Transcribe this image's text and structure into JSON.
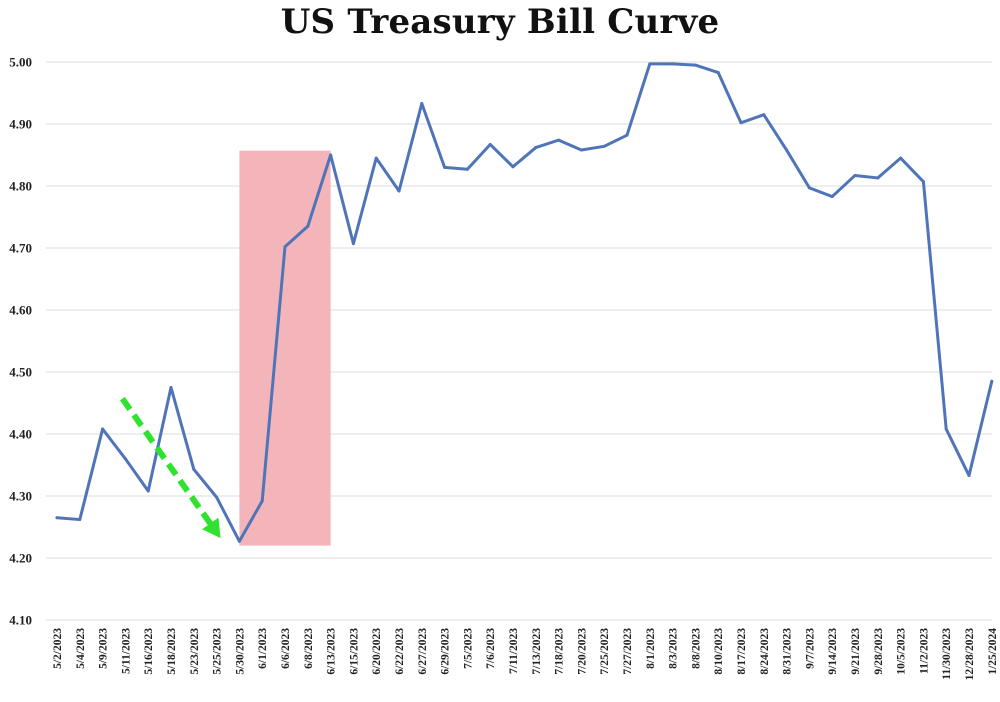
{
  "chart_data": {
    "type": "line",
    "title": "US Treasury Bill Curve",
    "xlabel": "",
    "ylabel": "",
    "ylim": [
      4.1,
      5.0
    ],
    "yticks": [
      "4.10",
      "4.20",
      "4.30",
      "4.40",
      "4.50",
      "4.60",
      "4.70",
      "4.80",
      "4.90",
      "5.00"
    ],
    "grid": true,
    "legend": "none",
    "categories": [
      "5/2/2023",
      "5/4/2023",
      "5/9/2023",
      "5/11/2023",
      "5/16/2023",
      "5/18/2023",
      "5/23/2023",
      "5/25/2023",
      "5/30/2023",
      "6/1/2023",
      "6/6/2023",
      "6/8/2023",
      "6/13/2023",
      "6/15/2023",
      "6/20/2023",
      "6/22/2023",
      "6/27/2023",
      "6/29/2023",
      "7/5/2023",
      "7/6/2023",
      "7/11/2023",
      "7/13/2023",
      "7/18/2023",
      "7/20/2023",
      "7/25/2023",
      "7/27/2023",
      "8/1/2023",
      "8/3/2023",
      "8/8/2023",
      "8/10/2023",
      "8/17/2023",
      "8/24/2023",
      "8/31/2023",
      "9/7/2023",
      "9/14/2023",
      "9/21/2023",
      "9/28/2023",
      "10/5/2023",
      "11/2/2023",
      "11/30/2023",
      "12/28/2023",
      "1/25/2024"
    ],
    "series": [
      {
        "values": [
          4.265,
          4.262,
          4.408,
          4.36,
          4.308,
          4.475,
          4.343,
          4.298,
          4.227,
          4.292,
          4.702,
          4.735,
          4.85,
          4.707,
          4.845,
          4.792,
          4.933,
          4.83,
          4.827,
          4.867,
          4.831,
          4.862,
          4.874,
          4.858,
          4.864,
          4.882,
          4.997,
          4.997,
          4.995,
          4.983,
          4.902,
          4.915,
          4.858,
          4.797,
          4.783,
          4.817,
          4.813,
          4.845,
          4.807,
          4.408,
          4.333,
          4.485
        ],
        "color": "#4f74b8"
      }
    ],
    "highlight": {
      "from_category": "5/30/2023",
      "to_category": "6/13/2023",
      "ymin": 4.22,
      "ymax": 4.857,
      "color": "#f4b5ba"
    },
    "annotations": [
      {
        "type": "dashed-arrow",
        "from": [
          "5/11/2023",
          4.457
        ],
        "to": [
          "5/25/2023",
          4.232
        ],
        "color": "#2fe22f"
      }
    ]
  }
}
